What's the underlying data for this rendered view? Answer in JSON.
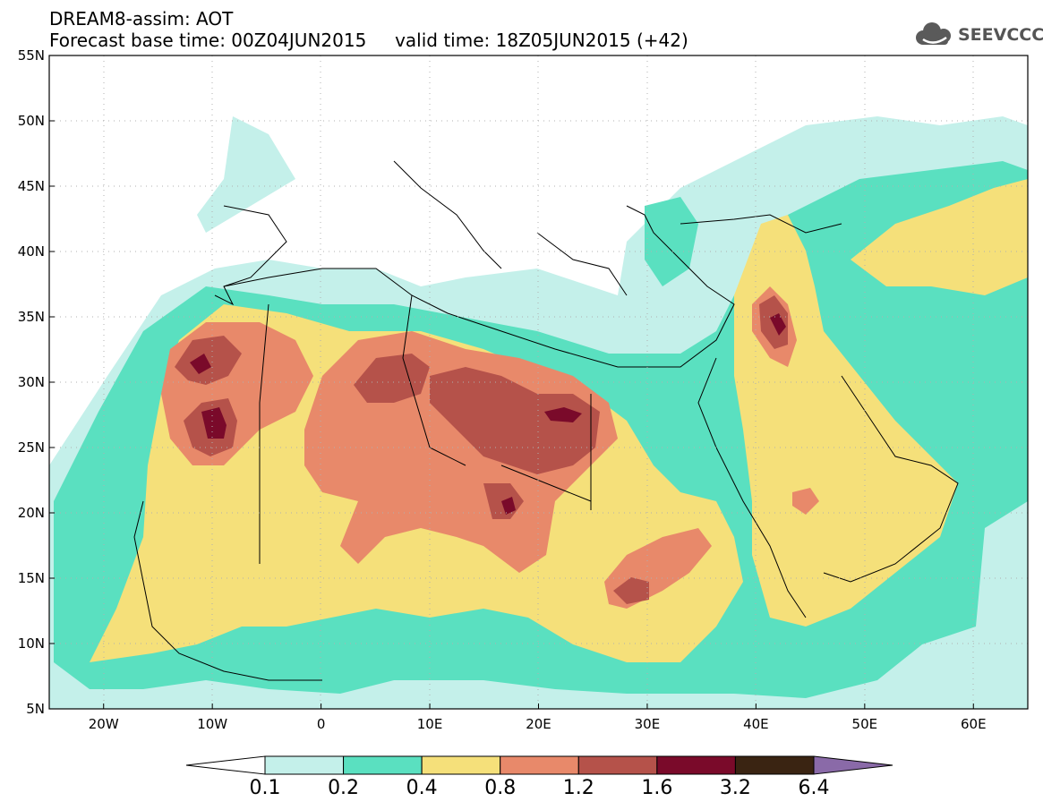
{
  "header": {
    "line1": "DREAM8-assim: AOT",
    "line2": "Forecast base time: 00Z04JUN2015     valid time: 18Z05JUN2015 (+42)",
    "logo_text": "SEEVCCC"
  },
  "map": {
    "lon_range": [
      -25,
      65
    ],
    "lat_range": [
      5,
      55
    ],
    "lat_ticks": [
      {
        "label": "55N",
        "value": 55
      },
      {
        "label": "50N",
        "value": 50
      },
      {
        "label": "45N",
        "value": 45
      },
      {
        "label": "40N",
        "value": 40
      },
      {
        "label": "35N",
        "value": 35
      },
      {
        "label": "30N",
        "value": 30
      },
      {
        "label": "25N",
        "value": 25
      },
      {
        "label": "20N",
        "value": 20
      },
      {
        "label": "15N",
        "value": 15
      },
      {
        "label": "10N",
        "value": 10
      },
      {
        "label": "5N",
        "value": 5
      }
    ],
    "lon_ticks": [
      {
        "label": "20W",
        "value": -20
      },
      {
        "label": "10W",
        "value": -10
      },
      {
        "label": "0",
        "value": 0
      },
      {
        "label": "10E",
        "value": 10
      },
      {
        "label": "20E",
        "value": 20
      },
      {
        "label": "30E",
        "value": 30
      },
      {
        "label": "40E",
        "value": 40
      },
      {
        "label": "50E",
        "value": 50
      },
      {
        "label": "60E",
        "value": 60
      }
    ],
    "grid": "dotted",
    "colors": {
      "0.1-0.2": "#c4f0ea",
      "0.2-0.4": "#5ae0c0",
      "0.4-0.8": "#f5e07a",
      "0.8-1.2": "#e8896a",
      "1.2-1.6": "#b5524a",
      "1.6-3.2": "#7a0a2a",
      "3.2-6.4": "#3a2412",
      "over": "#8a6aa8"
    }
  },
  "colorbar": {
    "labels": [
      "0.1",
      "0.2",
      "0.4",
      "0.8",
      "1.2",
      "1.6",
      "3.2",
      "6.4"
    ],
    "colors": [
      "#c4f0ea",
      "#5ae0c0",
      "#f5e07a",
      "#e8896a",
      "#b5524a",
      "#7a0a2a",
      "#3a2412"
    ],
    "over_color": "#8a6aa8"
  }
}
